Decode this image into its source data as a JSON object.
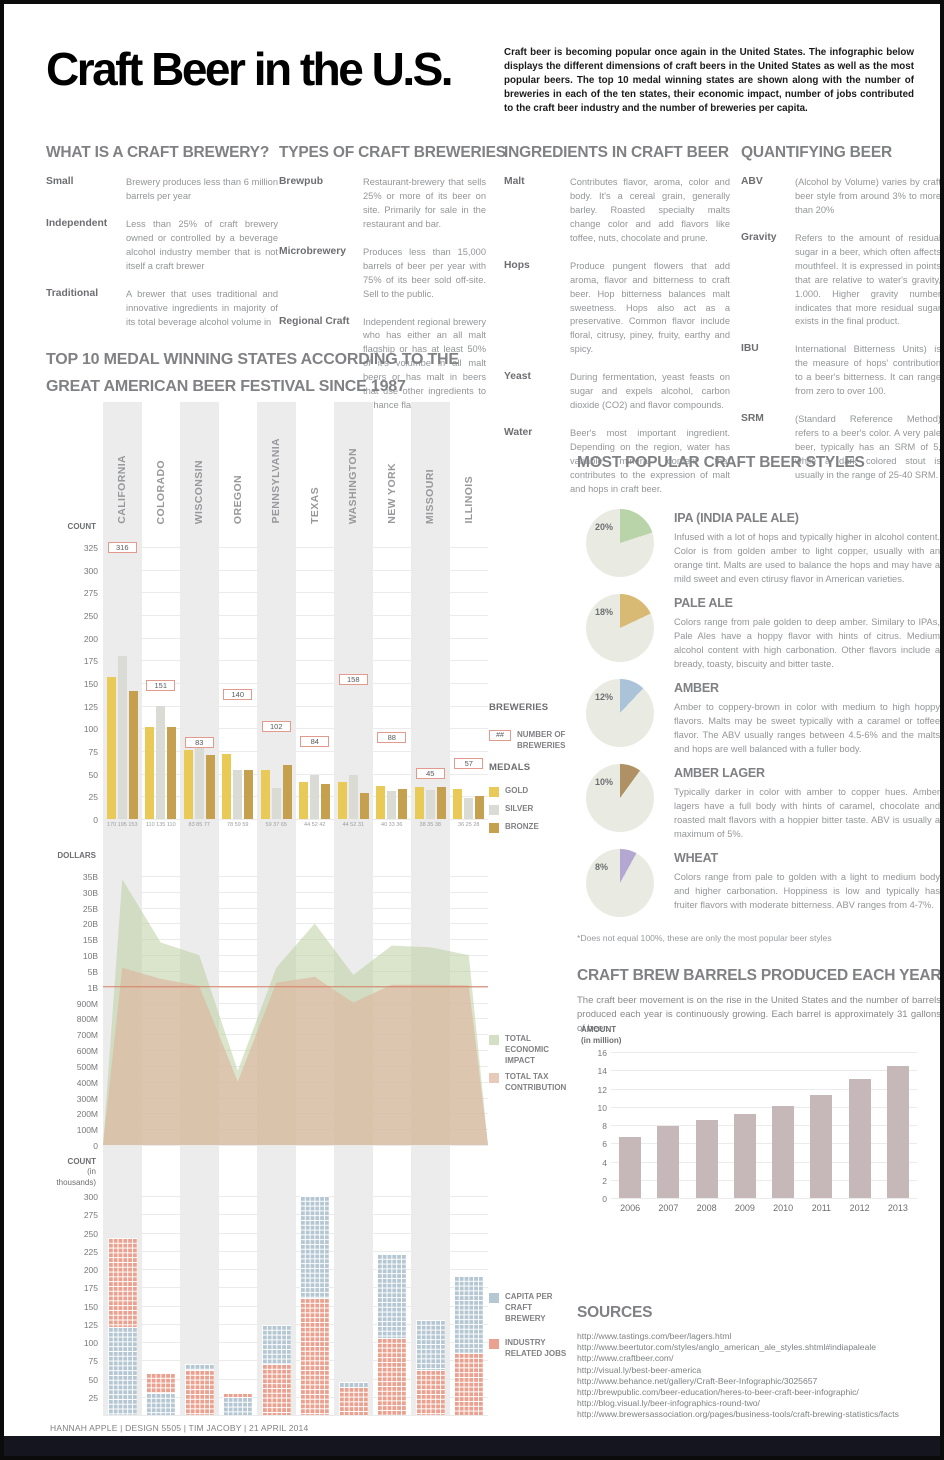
{
  "header": {
    "title": "Craft Beer in the U.S.",
    "intro": "Craft beer is becoming popular once again in the United States. The infographic below displays the different dimensions of craft beers in the United States as well as the most popular beers. The top 10 medal winning states are shown along with the number of breweries in each of the ten states, their economic impact, number of jobs contributed to the craft beer industry and the number of breweries per capita."
  },
  "sections": {
    "what_is": {
      "heading": "WHAT IS A CRAFT BREWERY?",
      "items": [
        {
          "term": "Small",
          "text": "Brewery produces less than 6 million barrels per year"
        },
        {
          "term": "Independent",
          "text": "Less than 25% of craft brewery owned or controlled by a beverage alcohol industry member that is not itself a craft brewer"
        },
        {
          "term": "Traditional",
          "text": "A brewer that uses traditional and innovative ingredients in majority of its total beverage alcohol volume in"
        }
      ]
    },
    "types": {
      "heading": "TYPES OF CRAFT BREWERIES",
      "items": [
        {
          "term": "Brewpub",
          "text": "Restaurant-brewery that sells 25% or more of its beer on site. Primarily for sale in the restaurant and bar."
        },
        {
          "term": "Microbrewery",
          "text": "Produces less than 15,000 barrels of beer per year with 75% of its beer sold off-site. Sell to the public."
        },
        {
          "term": "Regional Craft",
          "text": "Independent regional brewery who has either an all malt flagship or has at least 50% of it's volumbe in all malt beers or has malt in beers that use other ingredients to enhance flavors."
        }
      ]
    },
    "ingredients": {
      "heading": "INGREDIENTS IN CRAFT BEER",
      "items": [
        {
          "term": "Malt",
          "text": "Contributes flavor, aroma, color and body. It's a cereal grain, generally barley. Roasted specialty malts change color and add flavors like toffee, nuts, chocolate and prune."
        },
        {
          "term": "Hops",
          "text": "Produce pungent flowers that add aroma, flavor and bitterness to craft beer. Hop bitterness balances malt sweetness. Hops also act as a preservative. Common flavor include floral, citrusy, piney, fruity, earthy and spicy."
        },
        {
          "term": "Yeast",
          "text": "During fermentation, yeast feasts on sugar and expels alcohol, carbon dioxide (CO2) and flavor compounds."
        },
        {
          "term": "Water",
          "text": "Beer's most important ingredient. Depending on the region, water has variable mineral content that contributes to the expression of malt and hops in craft beer."
        }
      ]
    },
    "quantifying": {
      "heading": "QUANTIFYING BEER",
      "items": [
        {
          "term": "ABV",
          "text": "(Alcohol by Volume) varies by craft beer style from around 3% to more than 20%"
        },
        {
          "term": "Gravity",
          "text": "Refers to the amount of residual sugar in a beer, which often affects mouthfeel. It is expressed in points that are relative to water's gravity, 1.000. Higher gravity number indicates that more residual sugar exists in the final product."
        },
        {
          "term": "IBU",
          "text": "International Bitterness Units) is the measure of hops' contribution to a beer's bitterness. It can range from zero to over 100."
        },
        {
          "term": "SRM",
          "text": "(Standard Reference Method) refers to a beer's color. A very pale beer, typically has an SRM of 5, while a dark colored stout is usually in the range of 25-40 SRM."
        }
      ]
    }
  },
  "legends": {
    "breweries_heading": "BREWERIES",
    "breweries_badge": "##",
    "breweries_label": "NUMBER OF BREWERIES",
    "medals_heading": "MEDALS",
    "economic": "TOTAL ECONOMIC IMPACT",
    "tax": "TOTAL TAX CONTRIBUTION",
    "capita": "CAPITA PER CRAFT BREWERY",
    "jobs": "INDUSTRY RELATED JOBS"
  },
  "sources": {
    "heading": "SOURCES",
    "links": [
      "http://www.tastings.com/beer/lagers.html",
      "http://www.beertutor.com/styles/anglo_american_ale_styles.shtml#indiapaleale",
      "http://www.craftbeer.com/",
      "http://visual.ly/best-beer-america",
      "http://www.behance.net/gallery/Craft-Beer-Infographic/3025657",
      "http://brewpublic.com/beer-education/heres-to-beer-craft-beer-infographic/",
      "http://blog.visual.ly/beer-infographics-round-two/",
      "http://www.brewersassociation.org/pages/business-tools/craft-brewing-statistics/facts"
    ]
  },
  "credit": "HANNAH APPLE | DESIGN 5505 | TIM JACOBY | 21 APRIL 2014",
  "chart_data": [
    {
      "id": "medals",
      "type": "bar",
      "title": "TOP 10 MEDAL WINNING STATES ACCORDING TO THE GREAT AMERICAN BEER FESTIVAL SINCE 1987",
      "categories": [
        "CALIFORNIA",
        "COLORADO",
        "WISCONSIN",
        "OREGON",
        "PENNSYLVANIA",
        "TEXAS",
        "WASHINGTON",
        "NEW YORK",
        "MISSOURI",
        "ILLINOIS"
      ],
      "series": [
        {
          "name": "GOLD",
          "color": "#EACA57",
          "values": [
            170,
            110,
            83,
            78,
            59,
            44,
            44,
            40,
            38,
            36
          ]
        },
        {
          "name": "SILVER",
          "color": "#DBDBD5",
          "values": [
            195,
            135,
            85,
            59,
            37,
            52,
            52,
            33,
            35,
            25
          ]
        },
        {
          "name": "BRONZE",
          "color": "#C5A04F",
          "values": [
            153,
            110,
            77,
            59,
            65,
            42,
            31,
            36,
            38,
            28
          ]
        }
      ],
      "breweries": [
        316,
        151,
        83,
        140,
        102,
        84,
        158,
        88,
        45,
        57
      ],
      "ylabel": "COUNT",
      "ymax": 325,
      "yticks": [
        "325",
        "300",
        "275",
        "250",
        "200",
        "175",
        "150",
        "125",
        "100",
        "75",
        "50",
        "25",
        "0"
      ],
      "grid": true,
      "legend_position": "right"
    },
    {
      "id": "economic",
      "type": "area",
      "categories": [
        "CALIFORNIA",
        "COLORADO",
        "WISCONSIN",
        "OREGON",
        "PENNSYLVANIA",
        "TEXAS",
        "WASHINGTON",
        "NEW YORK",
        "MISSOURI",
        "ILLINOIS"
      ],
      "series": [
        {
          "name": "TOTAL ECONOMIC IMPACT",
          "color": "#BBCFA3",
          "values_billions": [
            34,
            14,
            10,
            0.47,
            6,
            20,
            4,
            13,
            12.5,
            10
          ]
        },
        {
          "name": "TOTAL TAX CONTRIBUTION",
          "color": "#DDB39C",
          "values_billions": [
            6,
            3,
            1.2,
            0.4,
            2,
            3.5,
            0.9,
            1.5,
            1.5,
            1.4
          ]
        }
      ],
      "ylabel": "DOLLARS",
      "yticks": [
        "35B",
        "30B",
        "25B",
        "20B",
        "15B",
        "10B",
        "5B",
        "1B",
        "900M",
        "800M",
        "700M",
        "600M",
        "500M",
        "400M",
        "300M",
        "200M",
        "100M",
        "0"
      ],
      "refline": {
        "value": "1B",
        "color": "#D67F63"
      },
      "legend_position": "right"
    },
    {
      "id": "jobs",
      "type": "stacked-waffle",
      "categories": [
        "CALIFORNIA",
        "COLORADO",
        "WISCONSIN",
        "OREGON",
        "PENNSYLVANIA",
        "TEXAS",
        "WASHINGTON",
        "NEW YORK",
        "MISSOURI",
        "ILLINOIS"
      ],
      "series": [
        {
          "name": "CAPITA PER CRAFT BREWERY",
          "color": "#B5C7D3",
          "values": [
            120,
            30,
            8,
            25,
            53,
            140,
            7,
            115,
            68,
            105
          ]
        },
        {
          "name": "INDUSTRY RELATED JOBS",
          "color": "#EBA18F",
          "values": [
            123,
            27,
            62,
            5,
            70,
            160,
            38,
            105,
            62,
            85
          ]
        }
      ],
      "bottom_series": [
        "capita",
        "capita",
        "jobs",
        "capita",
        "jobs",
        "jobs",
        "jobs",
        "jobs",
        "jobs",
        "jobs"
      ],
      "ylabel": "COUNT",
      "ylabel2": "(in thousands)",
      "ymax": 300,
      "yticks": [
        "300",
        "275",
        "250",
        "225",
        "200",
        "175",
        "150",
        "125",
        "100",
        "75",
        "50",
        "25"
      ],
      "legend_position": "right"
    },
    {
      "id": "styles",
      "type": "pie",
      "heading": "MOST POPULAR CRAFT BEER STYLES",
      "items": [
        {
          "name": "IPA (INDIA PALE ALE)",
          "pct": 20,
          "color": "#BAD4A9",
          "desc": "Infused with a lot of hops and typically higher in alcohol content. Color is from golden amber to light copper, usually with an orange tint. Malts are used to balance the hops and may have a mild sweet and even ctirusy flavor in American varieties."
        },
        {
          "name": "PALE ALE",
          "pct": 18,
          "color": "#D9BA74",
          "desc": "Colors range from pale golden to deep amber. Similary to IPAs, Pale Ales have a hoppy flavor with hints of citrus. Medium alcohol content with high carbonation. Other flavors include a bready, toasty, biscuity and bitter taste."
        },
        {
          "name": "AMBER",
          "pct": 12,
          "color": "#ABC3D8",
          "desc": "Amber to coppery-brown in color with medium to high hoppy flavors. Malts may be sweet typically with a caramel or toffee flavor. The ABV usually ranges between 4.5-6% and the malts and hops are well balanced with a fuller body."
        },
        {
          "name": "AMBER LAGER",
          "pct": 10,
          "color": "#AF9165",
          "desc": "Typically darker in color with amber to copper hues. Amber lagers have a full body with hints of caramel, chocolate and roasted malt flavors with a hoppier bitter taste. ABV is usually a maximum of 5%."
        },
        {
          "name": "WHEAT",
          "pct": 8,
          "color": "#B4A8D3",
          "desc": "Colors range from pale to golden with a light to medium body and higher carbonation. Hoppiness is low and typically has fruiter flavors with moderate bitterness. ABV ranges from 4-7%."
        }
      ],
      "base_color": "#E9EBE2",
      "footnote": "*Does not equal 100%, these are only the most popular beer styles"
    },
    {
      "id": "barrels",
      "type": "bar",
      "title": "CRAFT BREW BARRELS PRODUCED EACH YEAR",
      "desc": "The craft beer movement is on the rise in the United States and the number of barrels produced each year is continuously growing. Each barrel is approximately 31 gallons of beer.",
      "categories": [
        "2006",
        "2007",
        "2008",
        "2009",
        "2010",
        "2011",
        "2012",
        "2013"
      ],
      "values": [
        6.7,
        7.9,
        8.5,
        9.2,
        10.1,
        11.3,
        13,
        14.5
      ],
      "bar_color": "#C6B8B8",
      "ylabel": "AMOUNT",
      "ylabel2": "(in million)",
      "ymax": 16,
      "yticks": [
        16,
        14,
        12,
        10,
        8,
        6,
        4,
        2,
        0
      ],
      "grid": true
    }
  ]
}
